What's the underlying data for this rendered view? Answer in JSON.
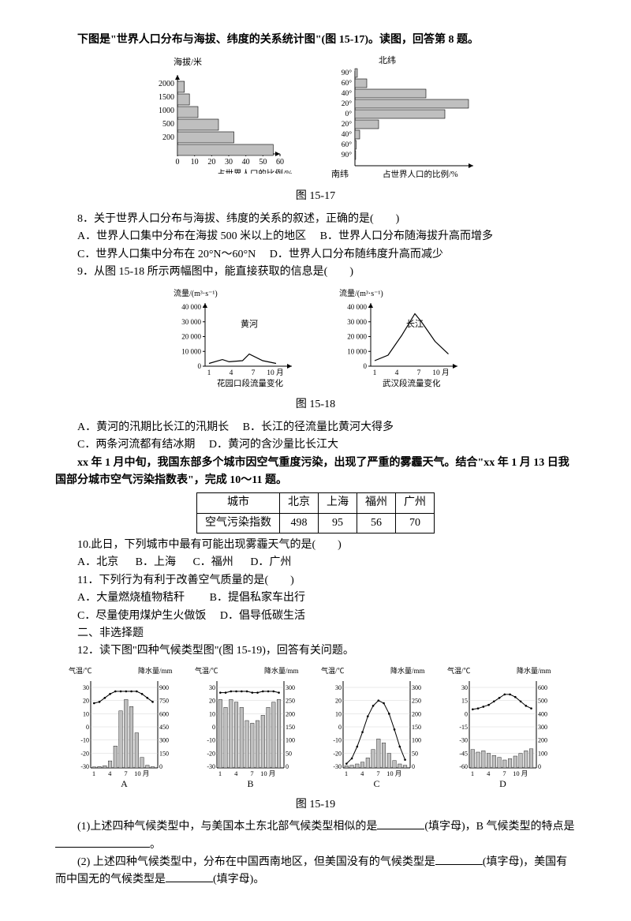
{
  "intro1": "下图是\"世界人口分布与海拔、纬度的关系统计图\"(图 15-17)。读图，回答第 8 题。",
  "fig1517": "图 15-17",
  "chartA": {
    "ylabel": "海拔/米",
    "xlabel": "占世界人口的比例/%",
    "yticks": [
      "2000",
      "1500",
      "1000",
      "500",
      "200"
    ],
    "xticks": [
      "0",
      "10",
      "20",
      "30",
      "40",
      "50",
      "60"
    ],
    "bars": [
      4,
      7,
      12,
      24,
      33,
      56
    ],
    "bar_color": "#bfbfbf",
    "stroke": "#000000"
  },
  "chartB": {
    "topLabel": "北纬",
    "botLabel": "南纬",
    "xlabel": "占世界人口的比例/%",
    "yticks_top": [
      "90°",
      "60°",
      "40°",
      "20°",
      "0°"
    ],
    "yticks_bot": [
      "20°",
      "40°",
      "60°",
      "90°"
    ],
    "bars": [
      1,
      5,
      30,
      48,
      38,
      10,
      2,
      0.5,
      0.3
    ],
    "bar_color": "#bfbfbf"
  },
  "q8": "8．关于世界人口分布与海拔、纬度的关系的叙述，正确的是(　　)",
  "q8A": "A．世界人口集中分布在海拔 500 米以上的地区",
  "q8B": "B．世界人口分布随海拔升高而增多",
  "q8C": "C．世界人口集中分布在 20°N～60°N",
  "q8D": "D．世界人口分布随纬度升高而减少",
  "q9": "9．从图 15-18 所示两幅图中，能直接获取的信息是(　　)",
  "riverY": {
    "ylabel": "流量/(m³·s⁻¹)",
    "name": "黄河",
    "title": "花园口段流量变化",
    "yticks": [
      "40 000",
      "30 000",
      "20 000",
      "10 000",
      "0"
    ],
    "xticks": [
      "1",
      "4",
      "7",
      "10 月"
    ],
    "peaks": [
      [
        0,
        0.05
      ],
      [
        2,
        0.12
      ],
      [
        3,
        0.08
      ],
      [
        5,
        0.1
      ],
      [
        6,
        0.22
      ],
      [
        8,
        0.1
      ],
      [
        10,
        0.05
      ]
    ]
  },
  "riverC": {
    "ylabel": "流量/(m³·s⁻¹)",
    "name": "长江",
    "title": "武汉段流量变化",
    "yticks": [
      "40 000",
      "30 000",
      "20 000",
      "10 000",
      "0"
    ],
    "xticks": [
      "1",
      "4",
      "7",
      "10 月"
    ],
    "peaks": [
      [
        0,
        0.1
      ],
      [
        2,
        0.2
      ],
      [
        4,
        0.55
      ],
      [
        6,
        0.95
      ],
      [
        7,
        0.8
      ],
      [
        9,
        0.45
      ],
      [
        11,
        0.22
      ]
    ]
  },
  "fig1518": "图 15-18",
  "q9A": "A．黄河的汛期比长江的汛期长",
  "q9B": "B．长江的径流量比黄河大得多",
  "q9C": "C．两条河流都有结冰期",
  "q9D": "D．黄河的含沙量比长江大",
  "intro10": "xx 年 1 月中旬，我国东部多个城市因空气重度污染，出现了严重的雾霾天气。结合\"xx 年 1 月 13 日我国部分城市空气污染指数表\"，完成 10～11 题。",
  "table": {
    "h1": "城市",
    "c1": "北京",
    "c2": "上海",
    "c3": "福州",
    "c4": "广州",
    "h2": "空气污染指数",
    "v1": "498",
    "v2": "95",
    "v3": "56",
    "v4": "70"
  },
  "q10": "10.此日，下列城市中最有可能出现雾霾天气的是(　　)",
  "q10A": "A．北京",
  "q10B": "B．上海",
  "q10C": "C．福州",
  "q10D": "D．广州",
  "q11": "11．下列行为有利于改善空气质量的是(　　)",
  "q11A": "A．大量燃烧植物秸秆",
  "q11B": "B．提倡私家车出行",
  "q11C": "C．尽量使用煤炉生火做饭",
  "q11D": "D．倡导低碳生活",
  "sec2": "二、非选择题",
  "q12": "12．读下图\"四种气候类型图\"(图 15-19)，回答有关问题。",
  "climate": {
    "tlabel": "气温/℃",
    "plabel": "降水量/mm",
    "xticks": [
      "1",
      "4",
      "7",
      "10 月"
    ],
    "tticks": [
      "30",
      "20",
      "10",
      "0",
      "-10",
      "-20",
      "-30"
    ],
    "A": {
      "label": "A",
      "pticks": [
        "900",
        "750",
        "600",
        "450",
        "300",
        "150",
        "0"
      ],
      "temp": [
        18,
        19,
        22,
        25,
        27,
        27,
        27,
        27,
        27,
        25,
        22,
        19
      ],
      "rain": [
        10,
        15,
        25,
        80,
        250,
        650,
        780,
        700,
        400,
        120,
        30,
        12
      ]
    },
    "B": {
      "label": "B",
      "pticks": [
        "300",
        "250",
        "200",
        "150",
        "100",
        "50",
        "0"
      ],
      "temp": [
        26,
        26,
        27,
        27,
        27,
        27,
        26,
        26,
        27,
        27,
        27,
        26
      ],
      "rain": [
        260,
        230,
        260,
        250,
        230,
        180,
        170,
        180,
        200,
        230,
        250,
        260
      ]
    },
    "C": {
      "label": "C",
      "pticks": [
        "300",
        "250",
        "200",
        "150",
        "100",
        "50",
        "0"
      ],
      "temp": [
        -28,
        -24,
        -15,
        -4,
        8,
        16,
        20,
        18,
        10,
        -2,
        -15,
        -25
      ],
      "rain": [
        8,
        10,
        15,
        22,
        38,
        70,
        110,
        95,
        55,
        28,
        15,
        10
      ]
    },
    "D": {
      "label": "D",
      "pticks": [
        "600",
        "500",
        "400",
        "300",
        "200",
        "100",
        "0"
      ],
      "tticks": [
        "30",
        "15",
        "0",
        "-15",
        "-30",
        "-45",
        "-60"
      ],
      "temp": [
        5,
        6,
        8,
        10,
        14,
        18,
        22,
        22,
        19,
        14,
        9,
        6
      ],
      "rain": [
        140,
        120,
        130,
        110,
        95,
        80,
        60,
        70,
        90,
        110,
        130,
        145
      ]
    }
  },
  "fig1519": "图 15-19",
  "q12_1a": "(1)上述四种气候类型中，与美国本土东北部气候类型相似的是",
  "q12_1b": "(填字母)，B 气候类型的特点是",
  "q12_1c": "。",
  "q12_2a": "(2) 上述四种气候类型中，分布在中国西南地区，但美国没有的气候类型是",
  "q12_2b": "(填字母)，美国有而中国无的气候类型是",
  "q12_2c": "(填字母)。"
}
